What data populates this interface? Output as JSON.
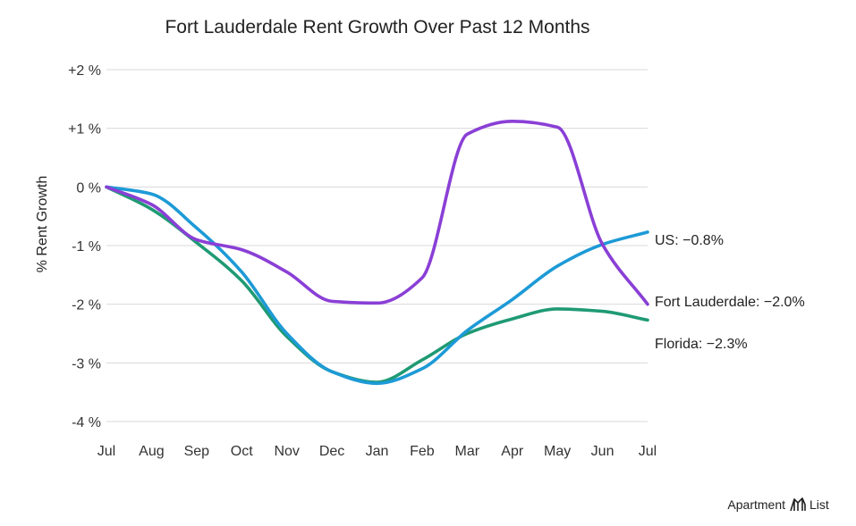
{
  "chart_data": {
    "type": "line",
    "title": "Fort Lauderdale Rent Growth Over Past 12 Months",
    "ylabel": "% Rent Growth",
    "xlabel": "",
    "categories": [
      "Jul",
      "Aug",
      "Sep",
      "Oct",
      "Nov",
      "Dec",
      "Jan",
      "Feb",
      "Mar",
      "Apr",
      "May",
      "Jun",
      "Jul"
    ],
    "yticks": [
      {
        "value": 2,
        "label": "+2 %"
      },
      {
        "value": 1,
        "label": "+1 %"
      },
      {
        "value": 0,
        "label": "0 %"
      },
      {
        "value": -1,
        "label": "-1 %"
      },
      {
        "value": -2,
        "label": "-2 %"
      },
      {
        "value": -3,
        "label": "-3 %"
      },
      {
        "value": -4,
        "label": "-4 %"
      }
    ],
    "ylim": [
      -4,
      2
    ],
    "grid": true,
    "legend": "end-of-line labels",
    "series": [
      {
        "name": "Fort Lauderdale",
        "end_label": "Fort Lauderdale: −2.0%",
        "color": "#8a3fd6",
        "values": [
          0,
          -0.3,
          -0.9,
          -1.07,
          -1.45,
          -1.95,
          -1.98,
          -1.55,
          0.9,
          1.12,
          1.02,
          -0.98,
          -2.0
        ]
      },
      {
        "name": "US",
        "end_label": "US: −0.8%",
        "color": "#1d9ad6",
        "values": [
          0,
          -0.12,
          -0.7,
          -1.45,
          -2.5,
          -3.15,
          -3.35,
          -3.1,
          -2.45,
          -1.92,
          -1.35,
          -0.98,
          -0.77
        ]
      },
      {
        "name": "Florida",
        "end_label": "Florida: −2.3%",
        "color": "#1f9a74",
        "values": [
          0,
          -0.38,
          -0.95,
          -1.6,
          -2.55,
          -3.15,
          -3.33,
          -2.95,
          -2.5,
          -2.25,
          -2.08,
          -2.12,
          -2.27
        ]
      }
    ]
  },
  "branding": {
    "name_left": "Apartment",
    "name_right": "List"
  }
}
